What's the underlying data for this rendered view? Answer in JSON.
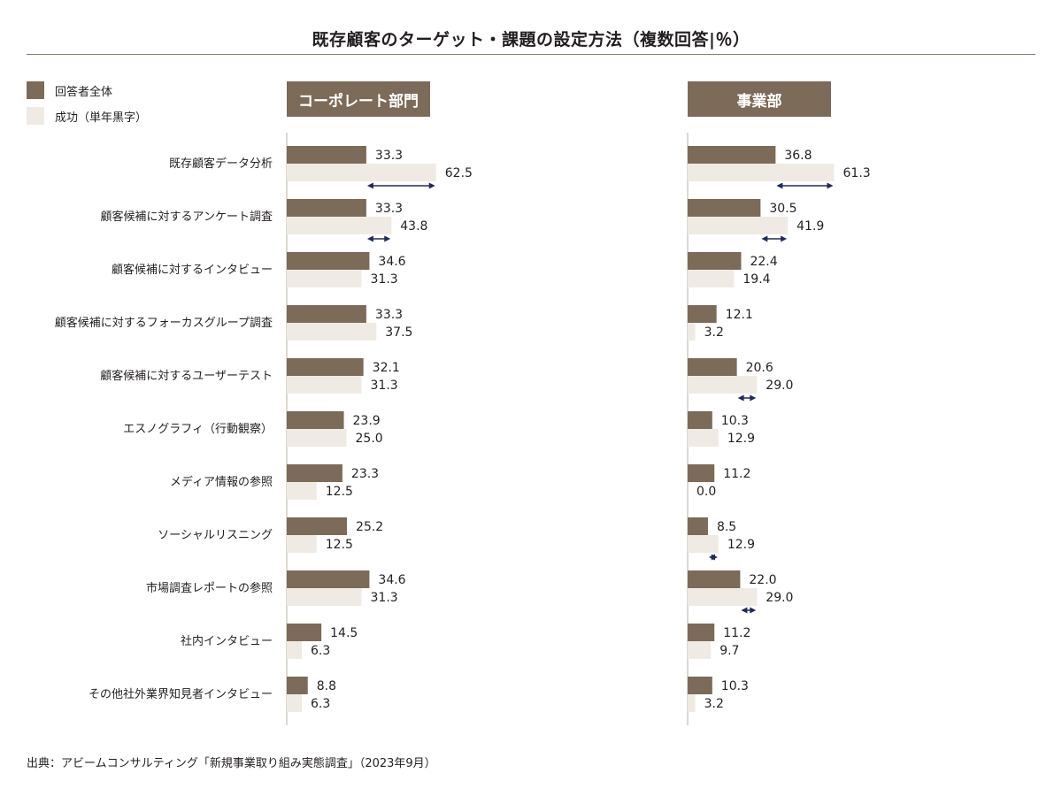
{
  "title": "既存顧客のターゲット・課題の設定方法（複数回答|％）",
  "legend": {
    "all_label": "回答者全体",
    "success_label": "成功（単年黒字）"
  },
  "colors": {
    "all": "#7c6b58",
    "success": "#efebe4",
    "arrow": "#1f2a5c",
    "axis": "#b8b0a5"
  },
  "footer": "出典：アビームコンサルティング「新規事業取り組み実態調査」（2023年9月）",
  "chart_data": [
    {
      "type": "bar",
      "title": "コーポレート部門",
      "categories": [
        "既存顧客データ分析",
        "顧客候補に対するアンケート調査",
        "顧客候補に対するインタビュー",
        "顧客候補に対するフォーカスグループ調査",
        "顧客候補に対するユーザーテスト",
        "エスノグラフィ（行動観察）",
        "メディア情報の参照",
        "ソーシャルリスニング",
        "市場調査レポートの参照",
        "社内インタビュー",
        "その他社外業界知見者インタビュー"
      ],
      "series": [
        {
          "name": "回答者全体",
          "values": [
            33.3,
            33.3,
            34.6,
            33.3,
            32.1,
            23.9,
            23.3,
            25.2,
            34.6,
            14.5,
            8.8
          ]
        },
        {
          "name": "成功（単年黒字）",
          "values": [
            62.5,
            43.8,
            31.3,
            37.5,
            31.3,
            25.0,
            12.5,
            12.5,
            31.3,
            6.3,
            6.3
          ]
        }
      ],
      "labels": [
        [
          "33.3",
          "33.3",
          "34.6",
          "33.3",
          "32.1",
          "23.9",
          "23.3",
          "25.2",
          "34.6",
          "14.5",
          "8.8"
        ],
        [
          "62.5",
          "43.8",
          "31.3",
          "37.5",
          "31.3",
          "25.0",
          "12.5",
          "12.5",
          "31.3",
          "6.3",
          "6.3"
        ]
      ],
      "highlight_arrows": [
        0,
        1
      ]
    },
    {
      "type": "bar",
      "title": "事業部",
      "categories": [
        "既存顧客データ分析",
        "顧客候補に対するアンケート調査",
        "顧客候補に対するインタビュー",
        "顧客候補に対するフォーカスグループ調査",
        "顧客候補に対するユーザーテスト",
        "エスノグラフィ（行動観察）",
        "メディア情報の参照",
        "ソーシャルリスニング",
        "市場調査レポートの参照",
        "社内インタビュー",
        "その他社外業界知見者インタビュー"
      ],
      "series": [
        {
          "name": "回答者全体",
          "values": [
            36.8,
            30.5,
            22.4,
            12.1,
            20.6,
            10.3,
            11.2,
            8.5,
            22.0,
            11.2,
            10.3
          ]
        },
        {
          "name": "成功（単年黒字）",
          "values": [
            61.3,
            41.9,
            19.4,
            3.2,
            29.0,
            12.9,
            0.0,
            12.9,
            29.0,
            9.7,
            3.2
          ]
        }
      ],
      "labels": [
        [
          "36.8",
          "30.5",
          "22.4",
          "12.1",
          "20.6",
          "10.3",
          "11.2",
          "8.5",
          "22.0",
          "11.2",
          "10.3"
        ],
        [
          "61.3",
          "41.9",
          "19.4",
          "3.2",
          "29.0",
          "12.9",
          "0.0",
          "12.9",
          "29.0",
          "9.7",
          "3.2"
        ]
      ],
      "highlight_arrows": [
        0,
        1,
        4,
        7,
        8
      ]
    }
  ]
}
